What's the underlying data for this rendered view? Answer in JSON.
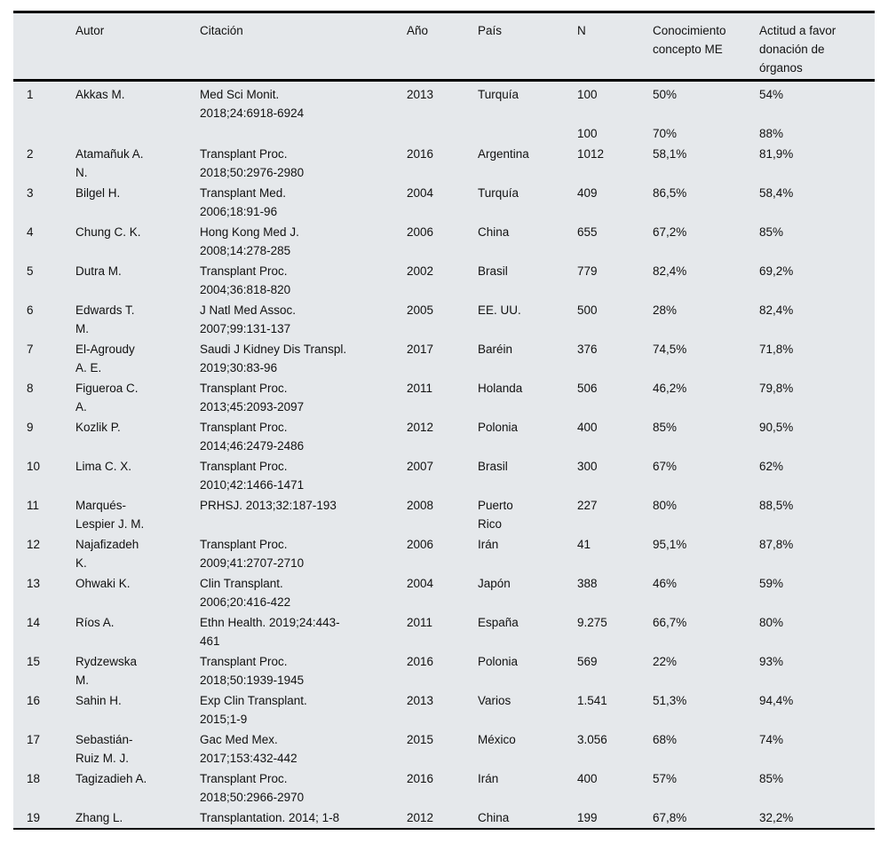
{
  "table": {
    "columns": [
      {
        "key": "num",
        "label": ""
      },
      {
        "key": "autor",
        "label": "Autor"
      },
      {
        "key": "citacion",
        "label": "Citación"
      },
      {
        "key": "ano",
        "label": "Año"
      },
      {
        "key": "pais",
        "label": "País"
      },
      {
        "key": "n",
        "label": "N"
      },
      {
        "key": "conocimiento",
        "label": "Conocimiento concepto ME"
      },
      {
        "key": "actitud",
        "label": "Actitud a favor donación de órganos"
      }
    ],
    "rows": [
      [
        "1",
        "Akkas M.",
        "Med Sci Monit. 2018;24:6918-6924",
        "2013",
        "Turquía",
        "100",
        "50%",
        "54%"
      ],
      [
        "",
        "",
        "",
        "",
        "",
        "100",
        "70%",
        "88%"
      ],
      [
        "2",
        "Atamañuk A. N.",
        "Transplant Proc. 2018;50:2976-2980",
        "2016",
        "Argentina",
        "1012",
        "58,1%",
        "81,9%"
      ],
      [
        "3",
        "Bilgel H.",
        "Transplant Med. 2006;18:91-96",
        "2004",
        "Turquía",
        "409",
        "86,5%",
        "58,4%"
      ],
      [
        "4",
        "Chung C. K.",
        "Hong Kong Med J. 2008;14:278-285",
        "2006",
        "China",
        "655",
        "67,2%",
        "85%"
      ],
      [
        "5",
        "Dutra M.",
        "Transplant Proc. 2004;36:818-820",
        "2002",
        "Brasil",
        "779",
        "82,4%",
        "69,2%"
      ],
      [
        "6",
        "Edwards T. M.",
        "J Natl Med Assoc. 2007;99:131-137",
        "2005",
        "EE. UU.",
        "500",
        "28%",
        "82,4%"
      ],
      [
        "7",
        "El-Agroudy A. E.",
        "Saudi J Kidney Dis Transpl. 2019;30:83-96",
        "2017",
        "Baréin",
        "376",
        "74,5%",
        "71,8%"
      ],
      [
        "8",
        "Figueroa C. A.",
        "Transplant Proc. 2013;45:2093-2097",
        "2011",
        "Holanda",
        "506",
        "46,2%",
        "79,8%"
      ],
      [
        "9",
        "Kozlik P.",
        "Transplant Proc. 2014;46:2479-2486",
        "2012",
        "Polonia",
        "400",
        "85%",
        "90,5%"
      ],
      [
        "10",
        "Lima C. X.",
        "Transplant Proc. 2010;42:1466-1471",
        "2007",
        "Brasil",
        "300",
        "67%",
        "62%"
      ],
      [
        "11",
        "Marqués-Lespier J. M.",
        "PRHSJ. 2013;32:187-193",
        "2008",
        "Puerto Rico",
        "227",
        "80%",
        "88,5%"
      ],
      [
        "12",
        "Najafizadeh K.",
        "Transplant Proc. 2009;41:2707-2710",
        "2006",
        "Irán",
        "41",
        "95,1%",
        "87,8%"
      ],
      [
        "13",
        "Ohwaki K.",
        "Clin Transplant. 2006;20:416-422",
        "2004",
        "Japón",
        "388",
        "46%",
        "59%"
      ],
      [
        "14",
        "Ríos A.",
        "Ethn Health. 2019;24:443-461",
        "2011",
        "España",
        "9.275",
        "66,7%",
        "80%"
      ],
      [
        "15",
        "Rydzewska M.",
        "Transplant Proc. 2018;50:1939-1945",
        "2016",
        "Polonia",
        "569",
        "22%",
        "93%"
      ],
      [
        "16",
        "Sahin H.",
        "Exp Clin Transplant. 2015;1-9",
        "2013",
        "Varios",
        "1.541",
        "51,3%",
        "94,4%"
      ],
      [
        "17",
        "Sebastián-Ruiz M. J.",
        "Gac Med Mex. 2017;153:432-442",
        "2015",
        "México",
        "3.056",
        "68%",
        "74%"
      ],
      [
        "18",
        "Tagizadieh A.",
        "Transplant Proc. 2018;50:2966-2970",
        "2016",
        "Irán",
        "400",
        "57%",
        "85%"
      ],
      [
        "19",
        "Zhang L.",
        "Transplantation. 2014; 1-8",
        "2012",
        "China",
        "199",
        "67,8%",
        "32,2%"
      ]
    ]
  }
}
